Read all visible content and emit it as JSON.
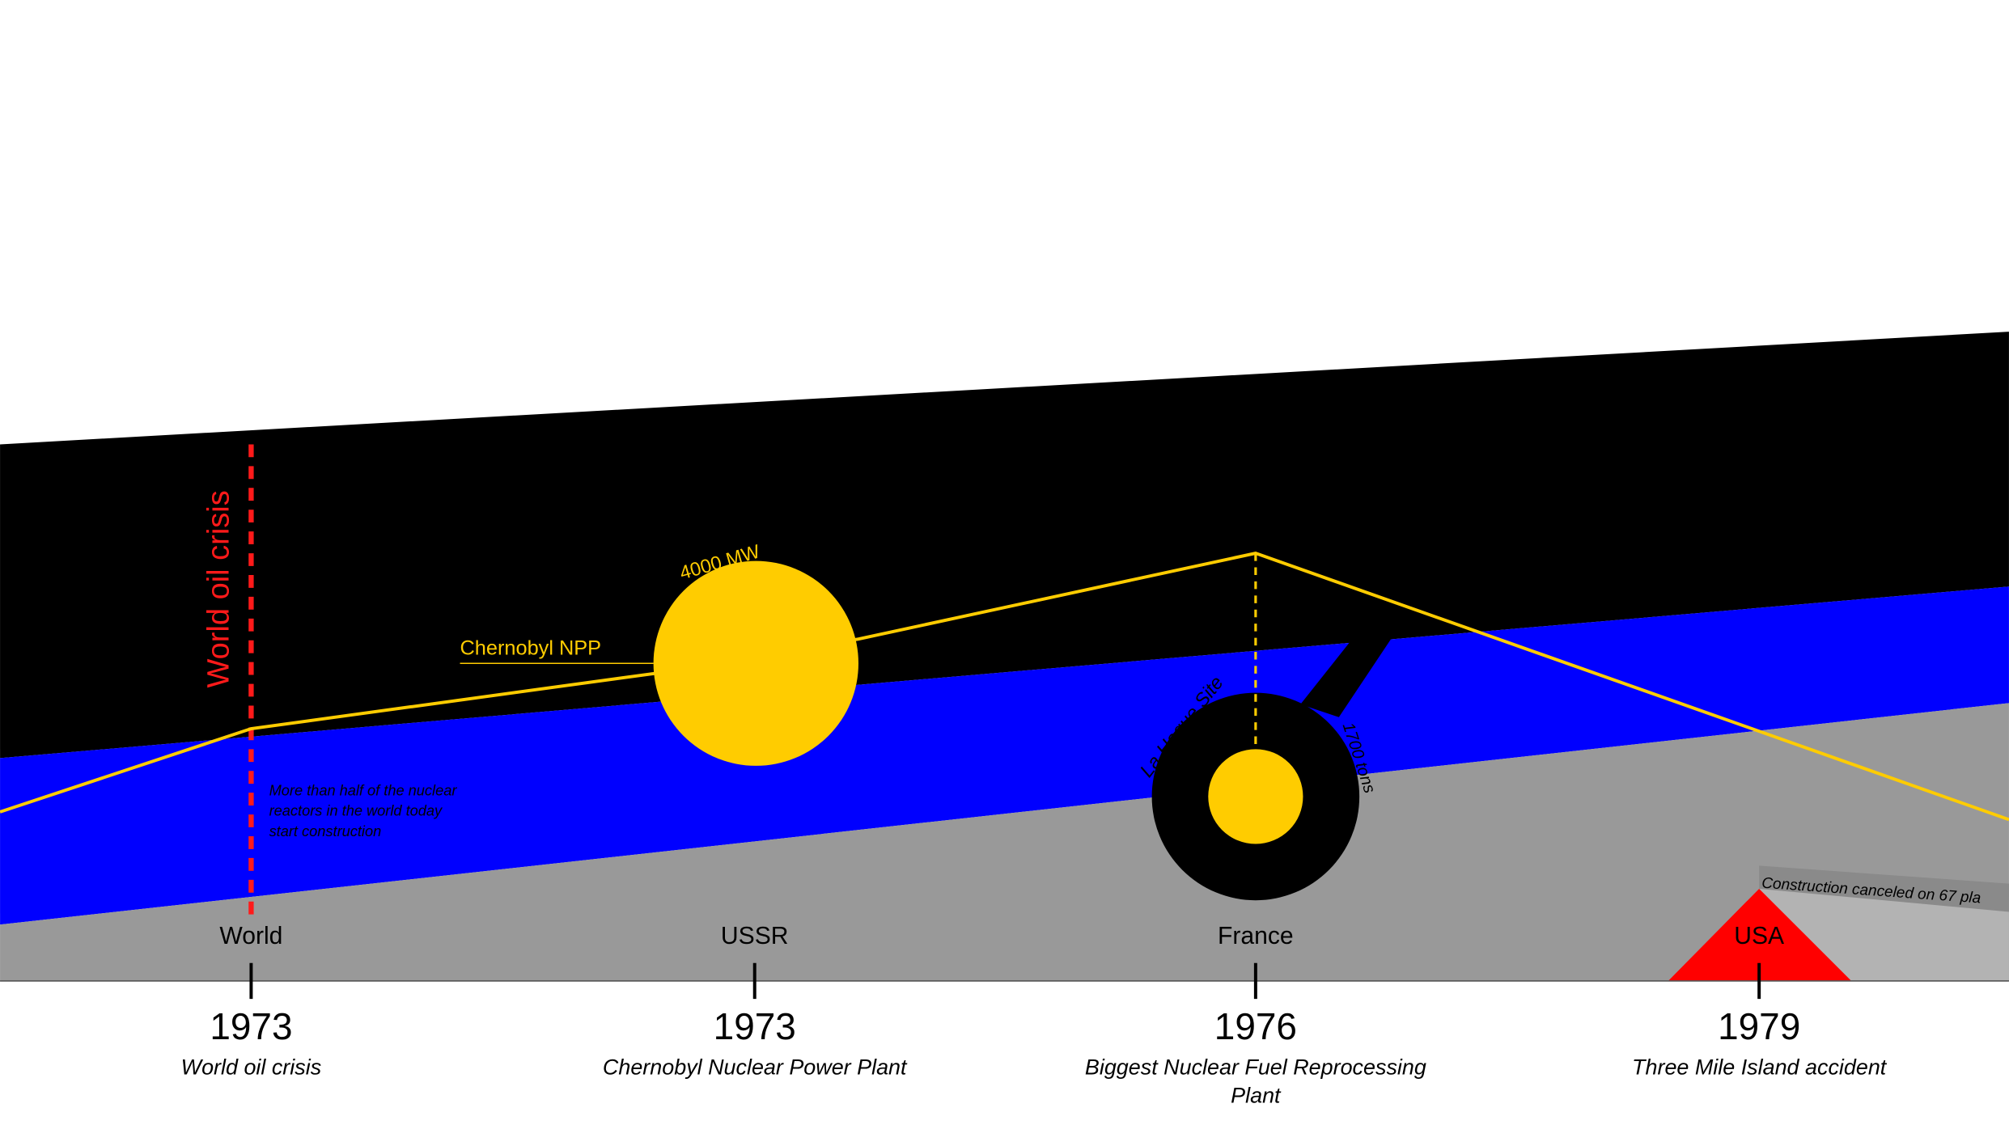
{
  "events": [
    {
      "place": "World",
      "year": "1973",
      "caption": "World oil crisis"
    },
    {
      "place": "USSR",
      "year": "1973",
      "caption": "Chernobyl Nuclear Power Plant"
    },
    {
      "place": "France",
      "year": "1976",
      "caption": "Biggest Nuclear Fuel Reprocessing Plant"
    },
    {
      "place": "USA",
      "year": "1979",
      "caption": "Three Mile Island accident"
    }
  ],
  "annotations": {
    "oil_crisis": "World oil crisis",
    "oil_note": "More than half of the nuclear reactors in the world today start construction",
    "chernobyl_power": "4000 MW",
    "chernobyl_name": "Chernobyl NPP",
    "la_hague_name": "La Hague Site",
    "la_hague_capacity": "1700 tons",
    "usa_note": "Construction canceled on 67 pla"
  }
}
